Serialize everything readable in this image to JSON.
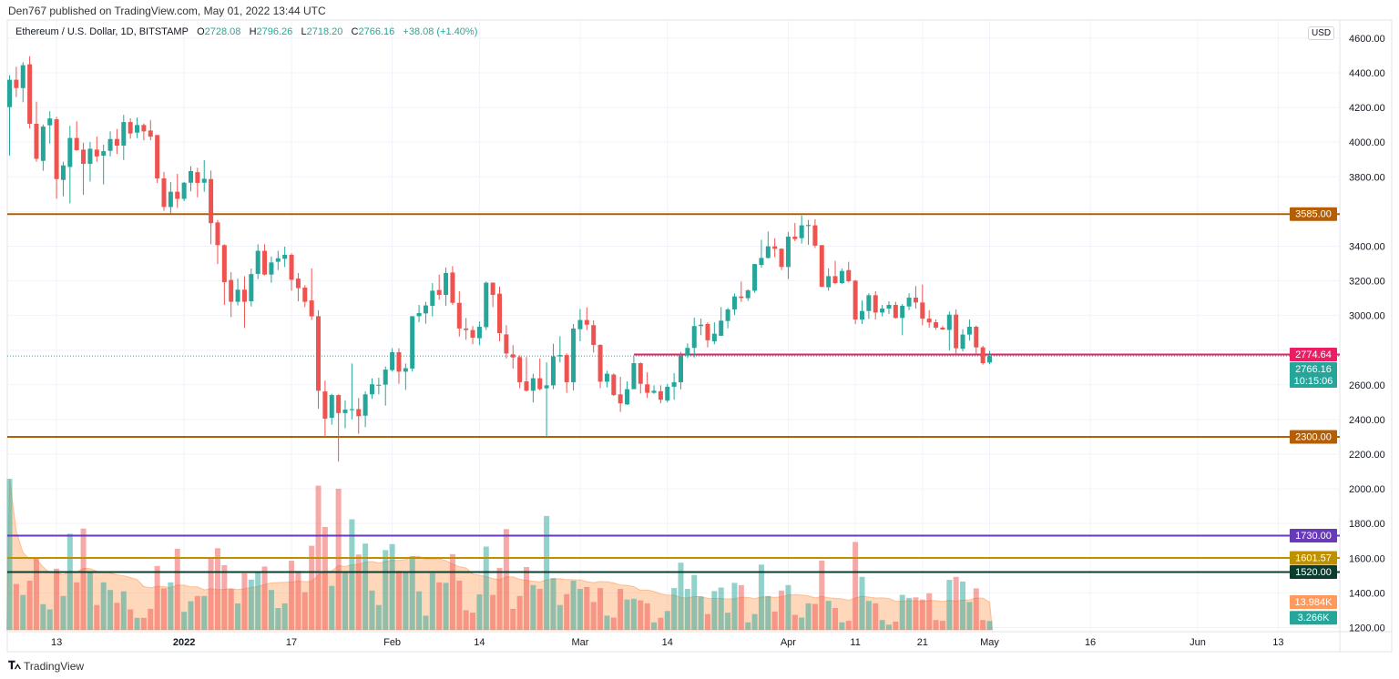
{
  "publisher_line": "Den767 published on TradingView.com, May 01, 2022 13:44 UTC",
  "legend": {
    "symbol": "Ethereum / U.S. Dollar, 1D, BITSTAMP",
    "o_label": "O",
    "o": "2728.08",
    "h_label": "H",
    "h": "2796.26",
    "l_label": "L",
    "l": "2718.20",
    "c_label": "C",
    "c": "2766.16",
    "change": "+38.08 (+1.40%)"
  },
  "currency_badge": "USD",
  "footer": {
    "brand": "TradingView",
    "logo_icon": "tradingview-logo-icon"
  },
  "colors": {
    "up": "#26a69a",
    "down": "#ef5350",
    "volume_ma": "#ff9a5c",
    "grid": "#f0f3fa"
  },
  "chart_data": {
    "type": "candlestick",
    "title": "Ethereum / U.S. Dollar, 1D, BITSTAMP",
    "price_axis": {
      "ticks": [
        4600,
        4400,
        4200,
        4000,
        3800,
        3600,
        3400,
        3200,
        3000,
        2800,
        2600,
        2400,
        2200,
        2000,
        1800,
        1600,
        1400,
        1200
      ],
      "hidden_ticks": [
        3600,
        2800
      ]
    },
    "time_axis": {
      "ticks": [
        {
          "label": "13",
          "date": "2021-12-13"
        },
        {
          "label": "2022",
          "date": "2022-01-01",
          "bold": true
        },
        {
          "label": "17",
          "date": "2022-01-17"
        },
        {
          "label": "Feb",
          "date": "2022-02-01"
        },
        {
          "label": "14",
          "date": "2022-02-14"
        },
        {
          "label": "Mar",
          "date": "2022-03-01"
        },
        {
          "label": "14",
          "date": "2022-03-14"
        },
        {
          "label": "Apr",
          "date": "2022-04-01"
        },
        {
          "label": "11",
          "date": "2022-04-11"
        },
        {
          "label": "21",
          "date": "2022-04-21"
        },
        {
          "label": "May",
          "date": "2022-05-01"
        },
        {
          "label": "16",
          "date": "2022-05-16"
        },
        {
          "label": "Jun",
          "date": "2022-06-01"
        },
        {
          "label": "13",
          "date": "2022-06-13"
        }
      ]
    },
    "levels": [
      {
        "price": 3585.0,
        "label": "3585.00",
        "color": "#b45f06"
      },
      {
        "price": 2300.0,
        "label": "2300.00",
        "color": "#b45f06"
      },
      {
        "price": 2774.64,
        "label": "2774.64",
        "color": "#e91e63",
        "from": "2022-03-09"
      },
      {
        "price": 1730.0,
        "label": "1730.00",
        "color": "#673ab7"
      },
      {
        "price": 1601.57,
        "label": "1601.57",
        "color": "#bf9000"
      },
      {
        "price": 1520.0,
        "label": "1520.00",
        "color": "#0b3d2e"
      }
    ],
    "last_price": {
      "price": 2766.16,
      "label": "2766.16",
      "countdown": "10:15:06",
      "color": "#26a69a"
    },
    "volume_labels": {
      "ma": "13.984K",
      "last": "3.266K",
      "unit": "K"
    },
    "candles_columns": [
      "date",
      "open",
      "high",
      "low",
      "close",
      "volume_k"
    ],
    "candles": [
      [
        "2021-12-06",
        4202,
        4386,
        3922,
        4360,
        55.3
      ],
      [
        "2021-12-07",
        4360,
        4435,
        4260,
        4312,
        16.8
      ],
      [
        "2021-12-08",
        4312,
        4461,
        4230,
        4444,
        12.8
      ],
      [
        "2021-12-09",
        4449,
        4496,
        4080,
        4106,
        18.0
      ],
      [
        "2021-12-10",
        4106,
        4234,
        3887,
        3904,
        26.0
      ],
      [
        "2021-12-11",
        3892,
        4102,
        3835,
        4090,
        9.4
      ],
      [
        "2021-12-12",
        4097,
        4178,
        3992,
        4137,
        7.5
      ],
      [
        "2021-12-13",
        4132,
        4146,
        3674,
        3787,
        22.4
      ],
      [
        "2021-12-14",
        3782,
        3887,
        3688,
        3866,
        12.4
      ],
      [
        "2021-12-15",
        3857,
        4094,
        3647,
        4024,
        35.2
      ],
      [
        "2021-12-16",
        4024,
        4120,
        3950,
        3954,
        17.4
      ],
      [
        "2021-12-17",
        3957,
        3997,
        3696,
        3875,
        37.1
      ],
      [
        "2021-12-18",
        3875,
        4001,
        3773,
        3962,
        21.2
      ],
      [
        "2021-12-19",
        3957,
        4032,
        3887,
        3918,
        9.1
      ],
      [
        "2021-12-20",
        3922,
        3985,
        3756,
        3948,
        17.4
      ],
      [
        "2021-12-21",
        3950,
        4062,
        3918,
        4018,
        14.6
      ],
      [
        "2021-12-22",
        4018,
        4076,
        3932,
        3980,
        9.9
      ],
      [
        "2021-12-23",
        3980,
        4158,
        3897,
        4116,
        14.1
      ],
      [
        "2021-12-24",
        4116,
        4137,
        4020,
        4050,
        7.5
      ],
      [
        "2021-12-25",
        4055,
        4142,
        4024,
        4099,
        4.4
      ],
      [
        "2021-12-26",
        4099,
        4108,
        4010,
        4062,
        4.4
      ],
      [
        "2021-12-27",
        4067,
        4128,
        4010,
        4032,
        7.7
      ],
      [
        "2021-12-28",
        4041,
        4041,
        3765,
        3791,
        23.4
      ],
      [
        "2021-12-29",
        3791,
        3828,
        3604,
        3626,
        15.2
      ],
      [
        "2021-12-30",
        3626,
        3770,
        3586,
        3714,
        17.4
      ],
      [
        "2021-12-31",
        3714,
        3817,
        3621,
        3673,
        29.7
      ],
      [
        "2022-01-01",
        3673,
        3770,
        3660,
        3766,
        6.6
      ],
      [
        "2022-01-02",
        3766,
        3861,
        3717,
        3833,
        10.5
      ],
      [
        "2022-01-03",
        3827,
        3852,
        3682,
        3765,
        12.4
      ],
      [
        "2022-01-04",
        3766,
        3896,
        3714,
        3789,
        12.4
      ],
      [
        "2022-01-05",
        3787,
        3836,
        3411,
        3533,
        26.6
      ],
      [
        "2022-01-06",
        3537,
        3551,
        3297,
        3406,
        29.9
      ],
      [
        "2022-01-07",
        3406,
        3411,
        3061,
        3192,
        23.7
      ],
      [
        "2022-01-08",
        3205,
        3250,
        2991,
        3079,
        15.0
      ],
      [
        "2022-01-09",
        3079,
        3213,
        3058,
        3149,
        9.7
      ],
      [
        "2022-01-10",
        3149,
        3227,
        2928,
        3079,
        20.7
      ],
      [
        "2022-01-11",
        3082,
        3271,
        3052,
        3239,
        18.4
      ],
      [
        "2022-01-12",
        3240,
        3411,
        3210,
        3373,
        21.5
      ],
      [
        "2022-01-13",
        3373,
        3411,
        3231,
        3236,
        23.2
      ],
      [
        "2022-01-14",
        3236,
        3341,
        3189,
        3306,
        14.6
      ],
      [
        "2022-01-15",
        3310,
        3373,
        3262,
        3330,
        8.0
      ],
      [
        "2022-01-16",
        3327,
        3397,
        3280,
        3350,
        9.7
      ],
      [
        "2022-01-17",
        3350,
        3359,
        3143,
        3206,
        25.3
      ],
      [
        "2022-01-18",
        3213,
        3245,
        3082,
        3158,
        21.6
      ],
      [
        "2022-01-19",
        3161,
        3175,
        3049,
        3079,
        13.8
      ],
      [
        "2022-01-20",
        3087,
        3271,
        2974,
        2995,
        30.8
      ],
      [
        "2022-01-21",
        2996,
        3031,
        2463,
        2566,
        52.8
      ],
      [
        "2022-01-22",
        2562,
        2624,
        2300,
        2405,
        37.7
      ],
      [
        "2022-01-23",
        2410,
        2548,
        2370,
        2541,
        16.1
      ],
      [
        "2022-01-24",
        2541,
        2545,
        2157,
        2437,
        51.7
      ],
      [
        "2022-01-25",
        2437,
        2510,
        2349,
        2457,
        20.9
      ],
      [
        "2022-01-26",
        2454,
        2723,
        2401,
        2460,
        40.5
      ],
      [
        "2022-01-27",
        2460,
        2524,
        2318,
        2419,
        27.6
      ],
      [
        "2022-01-28",
        2422,
        2562,
        2356,
        2545,
        31.6
      ],
      [
        "2022-01-29",
        2545,
        2638,
        2519,
        2603,
        14.4
      ],
      [
        "2022-01-30",
        2596,
        2641,
        2545,
        2600,
        9.1
      ],
      [
        "2022-01-31",
        2601,
        2706,
        2480,
        2688,
        29.2
      ],
      [
        "2022-02-01",
        2685,
        2811,
        2676,
        2788,
        31.4
      ],
      [
        "2022-02-02",
        2788,
        2811,
        2606,
        2676,
        21.6
      ],
      [
        "2022-02-03",
        2676,
        2723,
        2571,
        2696,
        20.9
      ],
      [
        "2022-02-04",
        2694,
        2996,
        2676,
        2996,
        27.0
      ],
      [
        "2022-02-05",
        2996,
        3061,
        2961,
        3014,
        14.1
      ],
      [
        "2022-02-06",
        3012,
        3079,
        2953,
        3058,
        5.2
      ],
      [
        "2022-02-07",
        3056,
        3187,
        2995,
        3143,
        20.7
      ],
      [
        "2022-02-08",
        3147,
        3236,
        3091,
        3119,
        17.4
      ],
      [
        "2022-02-09",
        3119,
        3276,
        3056,
        3245,
        17.2
      ],
      [
        "2022-02-10",
        3248,
        3285,
        3061,
        3073,
        27.7
      ],
      [
        "2022-02-11",
        3073,
        3140,
        2878,
        2925,
        18.0
      ],
      [
        "2022-02-12",
        2925,
        2986,
        2860,
        2916,
        7.2
      ],
      [
        "2022-02-13",
        2916,
        2939,
        2834,
        2872,
        6.3
      ],
      [
        "2022-02-14",
        2869,
        2965,
        2829,
        2935,
        13.0
      ],
      [
        "2022-02-15",
        2933,
        3196,
        2916,
        3189,
        30.5
      ],
      [
        "2022-02-16",
        3189,
        3192,
        3049,
        3119,
        12.8
      ],
      [
        "2022-02-17",
        3126,
        3166,
        2851,
        2898,
        22.7
      ],
      [
        "2022-02-18",
        2891,
        2944,
        2752,
        2781,
        36.9
      ],
      [
        "2022-02-19",
        2776,
        2829,
        2694,
        2758,
        7.7
      ],
      [
        "2022-02-20",
        2760,
        2770,
        2580,
        2615,
        12.4
      ],
      [
        "2022-02-21",
        2620,
        2760,
        2562,
        2566,
        23.0
      ],
      [
        "2022-02-22",
        2566,
        2664,
        2498,
        2638,
        16.4
      ],
      [
        "2022-02-23",
        2638,
        2752,
        2568,
        2575,
        15.0
      ],
      [
        "2022-02-24",
        2580,
        2729,
        2300,
        2597,
        41.7
      ],
      [
        "2022-02-25",
        2597,
        2837,
        2575,
        2764,
        19.0
      ],
      [
        "2022-02-26",
        2764,
        2881,
        2729,
        2772,
        9.1
      ],
      [
        "2022-02-27",
        2772,
        2781,
        2554,
        2615,
        13.1
      ],
      [
        "2022-02-28",
        2615,
        2951,
        2568,
        2925,
        18.0
      ],
      [
        "2022-03-01",
        2921,
        3038,
        2851,
        2974,
        15.0
      ],
      [
        "2022-03-02",
        2974,
        3047,
        2916,
        2947,
        15.7
      ],
      [
        "2022-03-03",
        2944,
        2972,
        2786,
        2830,
        10.2
      ],
      [
        "2022-03-04",
        2830,
        2834,
        2580,
        2618,
        15.3
      ],
      [
        "2022-03-05",
        2618,
        2681,
        2585,
        2664,
        5.2
      ],
      [
        "2022-03-06",
        2659,
        2667,
        2536,
        2541,
        4.5
      ],
      [
        "2022-03-07",
        2545,
        2646,
        2444,
        2493,
        15.0
      ],
      [
        "2022-03-08",
        2487,
        2620,
        2484,
        2575,
        11.1
      ],
      [
        "2022-03-09",
        2575,
        2767,
        2575,
        2725,
        11.4
      ],
      [
        "2022-03-10",
        2725,
        2729,
        2550,
        2606,
        10.8
      ],
      [
        "2022-03-11",
        2603,
        2673,
        2524,
        2554,
        9.7
      ],
      [
        "2022-03-12",
        2554,
        2597,
        2548,
        2566,
        2.75
      ],
      [
        "2022-03-13",
        2563,
        2597,
        2493,
        2514,
        4.4
      ],
      [
        "2022-03-14",
        2510,
        2606,
        2498,
        2589,
        6.9
      ],
      [
        "2022-03-15",
        2589,
        2667,
        2514,
        2615,
        15.3
      ],
      [
        "2022-03-16",
        2615,
        2790,
        2575,
        2769,
        24.6
      ],
      [
        "2022-03-17",
        2769,
        2839,
        2755,
        2813,
        15.0
      ],
      [
        "2022-03-18",
        2813,
        2988,
        2758,
        2939,
        20.1
      ],
      [
        "2022-03-19",
        2939,
        2982,
        2886,
        2947,
        12.2
      ],
      [
        "2022-03-20",
        2951,
        2961,
        2816,
        2857,
        5.8
      ],
      [
        "2022-03-21",
        2851,
        2961,
        2834,
        2895,
        14.2
      ],
      [
        "2022-03-22",
        2883,
        3049,
        2883,
        2970,
        15.5
      ],
      [
        "2022-03-23",
        2968,
        3044,
        2926,
        3035,
        6.3
      ],
      [
        "2022-03-24",
        3035,
        3126,
        3003,
        3110,
        17.2
      ],
      [
        "2022-03-25",
        3110,
        3196,
        3079,
        3101,
        16.4
      ],
      [
        "2022-03-26",
        3100,
        3152,
        3084,
        3145,
        2.75
      ],
      [
        "2022-03-27",
        3143,
        3297,
        3131,
        3297,
        5.8
      ],
      [
        "2022-03-28",
        3292,
        3437,
        3276,
        3332,
        23.9
      ],
      [
        "2022-03-29",
        3332,
        3485,
        3329,
        3399,
        12.4
      ],
      [
        "2022-03-30",
        3399,
        3446,
        3336,
        3385,
        6.7
      ],
      [
        "2022-03-31",
        3385,
        3388,
        3262,
        3280,
        14.4
      ],
      [
        "2022-04-01",
        3280,
        3481,
        3210,
        3455,
        16.4
      ],
      [
        "2022-04-02",
        3455,
        3534,
        3429,
        3441,
        5.5
      ],
      [
        "2022-04-03",
        3446,
        3577,
        3415,
        3520,
        4.5
      ],
      [
        "2022-04-04",
        3516,
        3551,
        3408,
        3522,
        9.7
      ],
      [
        "2022-04-05",
        3520,
        3555,
        3389,
        3403,
        9.5
      ],
      [
        "2022-04-06",
        3406,
        3406,
        3163,
        3166,
        25.4
      ],
      [
        "2022-04-07",
        3163,
        3271,
        3143,
        3227,
        10.6
      ],
      [
        "2022-04-08",
        3227,
        3315,
        3180,
        3187,
        8.0
      ],
      [
        "2022-04-09",
        3187,
        3271,
        3180,
        3257,
        2.75
      ],
      [
        "2022-04-10",
        3262,
        3310,
        3192,
        3198,
        3.3
      ],
      [
        "2022-04-11",
        3201,
        3205,
        2951,
        2977,
        32.2
      ],
      [
        "2022-04-12",
        2977,
        3087,
        2951,
        3026,
        19.4
      ],
      [
        "2022-04-13",
        3026,
        3128,
        2980,
        3117,
        10.6
      ],
      [
        "2022-04-14",
        3117,
        3140,
        2977,
        3017,
        9.7
      ],
      [
        "2022-04-15",
        3017,
        3061,
        2995,
        3040,
        3.6
      ],
      [
        "2022-04-16",
        3040,
        3082,
        3009,
        3061,
        1.9
      ],
      [
        "2022-04-17",
        3061,
        3079,
        2982,
        2986,
        3.0
      ],
      [
        "2022-04-18",
        2986,
        3066,
        2886,
        3056,
        12.8
      ],
      [
        "2022-04-19",
        3052,
        3128,
        3031,
        3103,
        11.7
      ],
      [
        "2022-04-20",
        3103,
        3170,
        3040,
        3075,
        11.9
      ],
      [
        "2022-04-21",
        3075,
        3178,
        2944,
        2982,
        11.1
      ],
      [
        "2022-04-22",
        2982,
        3031,
        2930,
        2960,
        13.4
      ],
      [
        "2022-04-23",
        2961,
        2977,
        2918,
        2930,
        3.6
      ],
      [
        "2022-04-24",
        2930,
        2939,
        2916,
        2919,
        3.3
      ],
      [
        "2022-04-25",
        2917,
        3023,
        2799,
        3005,
        18.3
      ],
      [
        "2022-04-26",
        3005,
        3035,
        2767,
        2811,
        19.4
      ],
      [
        "2022-04-27",
        2808,
        2921,
        2793,
        2890,
        17.7
      ],
      [
        "2022-04-28",
        2890,
        2977,
        2855,
        2935,
        10.2
      ],
      [
        "2022-04-29",
        2935,
        2942,
        2776,
        2816,
        15.2
      ],
      [
        "2022-04-30",
        2816,
        2825,
        2716,
        2725,
        3.6
      ],
      [
        "2022-05-01",
        2728.08,
        2796.26,
        2718.2,
        2766.16,
        3.266
      ]
    ]
  }
}
